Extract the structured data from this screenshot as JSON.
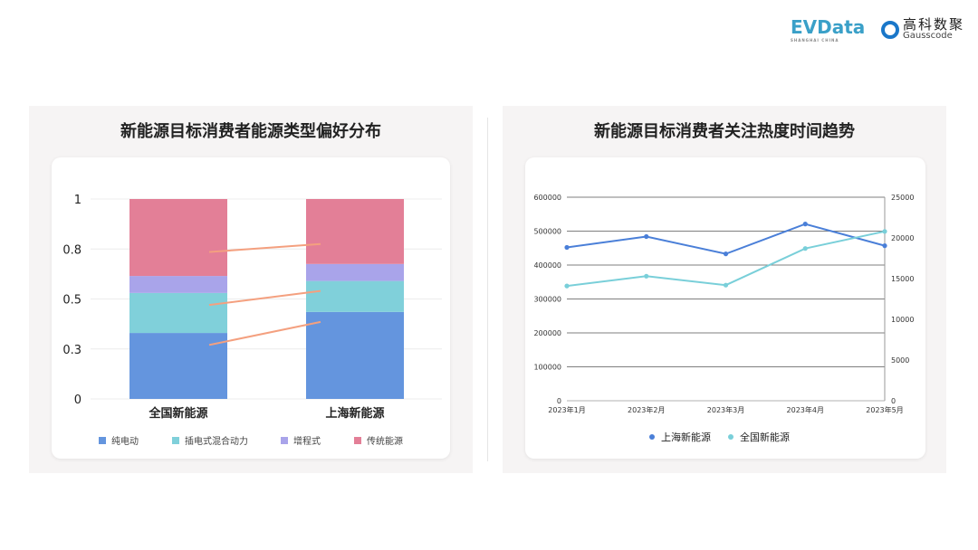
{
  "logos": {
    "evdata": "EVData",
    "evdata_sub": "SHANGHAI CHINA",
    "gauss_cn": "高科数聚",
    "gauss_en": "Gausscode"
  },
  "chart_data": [
    {
      "type": "bar",
      "stacked": true,
      "title": "新能源目标消费者能源类型偏好分布",
      "categories": [
        "全国新能源",
        "上海新能源"
      ],
      "series": [
        {
          "name": "纯电动",
          "values": [
            0.33,
            0.435
          ],
          "color": "#6495de"
        },
        {
          "name": "插电式混合动力",
          "values": [
            0.2,
            0.155
          ],
          "color": "#80d0da"
        },
        {
          "name": "增程式",
          "values": [
            0.085,
            0.085
          ],
          "color": "#a9a4ea"
        },
        {
          "name": "传统能源",
          "values": [
            0.385,
            0.325
          ],
          "color": "#e37f97"
        }
      ],
      "yticks": [
        0,
        0.25,
        0.5,
        0.75,
        1
      ],
      "ytick_labels": [
        "0",
        "0.3",
        "0.5",
        "0.8",
        "1"
      ],
      "ylim": [
        0,
        1
      ],
      "grid": true,
      "legend": "bottom",
      "connector_color": "#f4a07f"
    },
    {
      "type": "line",
      "title": "新能源目标消费者关注热度时间趋势",
      "categories": [
        "2023年1月",
        "2023年2月",
        "2023年3月",
        "2023年4月",
        "2023年5月"
      ],
      "series": [
        {
          "name": "上海新能源",
          "axis": "left",
          "values": [
            452000,
            484000,
            433000,
            521000,
            457000
          ],
          "color": "#4a7fd8"
        },
        {
          "name": "全国新能源",
          "axis": "right",
          "values": [
            14100,
            15300,
            14200,
            18700,
            20800
          ],
          "color": "#79cfd9"
        }
      ],
      "ylim_left": [
        0,
        600000
      ],
      "yticks_left": [
        "0",
        "100000",
        "200000",
        "300000",
        "400000",
        "500000",
        "600000"
      ],
      "ylim_right": [
        0,
        25000
      ],
      "yticks_right": [
        "0",
        "5000",
        "10000",
        "15000",
        "20000",
        "25000"
      ],
      "grid": true,
      "legend": "bottom"
    }
  ]
}
